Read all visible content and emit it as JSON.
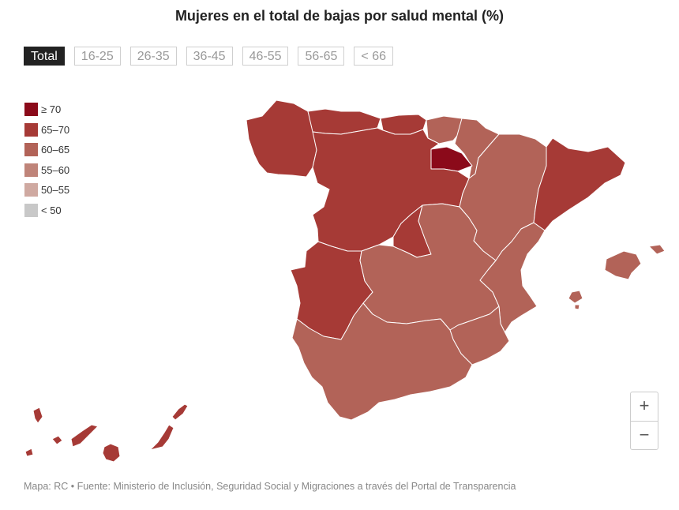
{
  "title": "Mujeres en el total de bajas por salud mental (%)",
  "tabs": [
    {
      "label": "Total",
      "active": true
    },
    {
      "label": "16-25",
      "active": false
    },
    {
      "label": "26-35",
      "active": false
    },
    {
      "label": "36-45",
      "active": false
    },
    {
      "label": "46-55",
      "active": false
    },
    {
      "label": "56-65",
      "active": false
    },
    {
      "label": "< 66",
      "active": false
    }
  ],
  "legend": [
    {
      "label": "≥ 70",
      "color": "#8b0a1a"
    },
    {
      "label": "65–70",
      "color": "#a63a36"
    },
    {
      "label": "60–65",
      "color": "#b26358"
    },
    {
      "label": "55–60",
      "color": "#bf8479"
    },
    {
      "label": "50–55",
      "color": "#cfa9a1"
    },
    {
      "label": "< 50",
      "color": "#c8c8c8"
    }
  ],
  "regions": [
    {
      "name": "galicia",
      "class": "65–70"
    },
    {
      "name": "asturias",
      "class": "65–70"
    },
    {
      "name": "cantabria",
      "class": "65–70"
    },
    {
      "name": "pais-vasco",
      "class": "60–65"
    },
    {
      "name": "navarra",
      "class": "60–65"
    },
    {
      "name": "la-rioja",
      "class": "≥ 70"
    },
    {
      "name": "castilla-y-leon",
      "class": "65–70"
    },
    {
      "name": "madrid",
      "class": "65–70"
    },
    {
      "name": "extremadura",
      "class": "65–70"
    },
    {
      "name": "aragon",
      "class": "60–65"
    },
    {
      "name": "cataluna",
      "class": "65–70"
    },
    {
      "name": "castilla-la-mancha",
      "class": "60–65"
    },
    {
      "name": "comunidad-valenciana",
      "class": "60–65"
    },
    {
      "name": "murcia",
      "class": "60–65"
    },
    {
      "name": "andalucia",
      "class": "60–65"
    },
    {
      "name": "baleares",
      "class": "60–65"
    },
    {
      "name": "canarias",
      "class": "65–70"
    }
  ],
  "zoom": {
    "in": "+",
    "out": "−"
  },
  "source": "Mapa: RC • Fuente: Ministerio de Inclusión, Seguridad Social y Migraciones a través del Portal de Transparencia"
}
